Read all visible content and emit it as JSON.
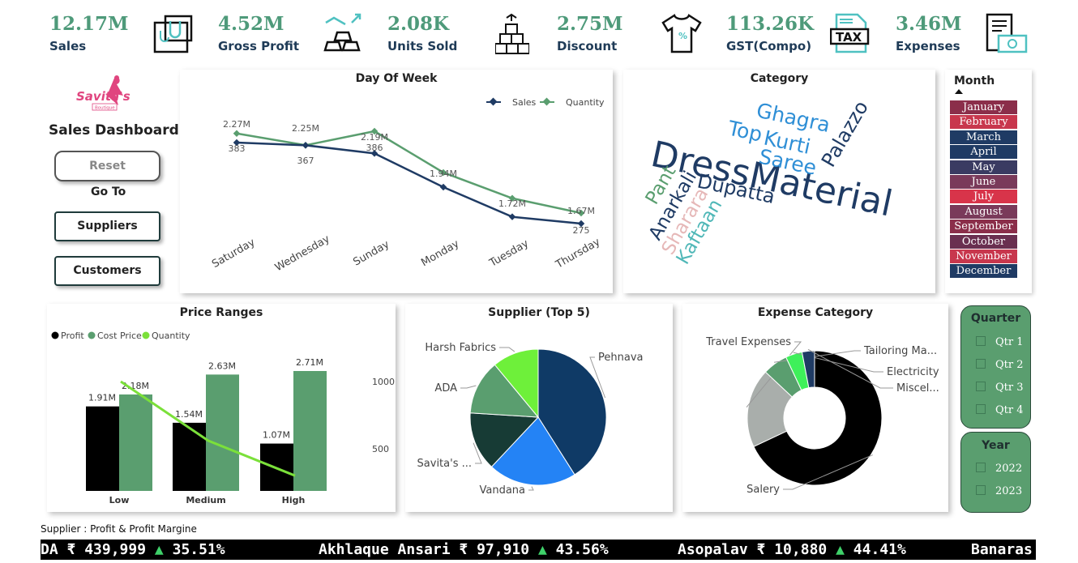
{
  "kpis": [
    {
      "value": "12.17M",
      "label": "Sales",
      "icon": "shopping-bag-icon"
    },
    {
      "value": "4.52M",
      "label": "Gross Profit",
      "icon": "gold-bars-icon"
    },
    {
      "value": "2.08K",
      "label": "Units Sold",
      "icon": "boxes-icon"
    },
    {
      "value": "2.75M",
      "label": "Discount",
      "icon": "tshirt-discount-icon"
    },
    {
      "value": "113.26K",
      "label": "GST(Compo)",
      "icon": "tax-document-icon"
    },
    {
      "value": "3.46M",
      "label": "Expenses",
      "icon": "invoice-money-icon"
    }
  ],
  "sidebar": {
    "logo_text": "Savita's",
    "logo_sub": "Boutique",
    "title": "Sales Dashboard",
    "reset_label": "Reset",
    "goto_label": "Go To",
    "suppliers_label": "Suppliers",
    "customers_label": "Customers"
  },
  "colors": {
    "sales": "#1f3b64",
    "quantity": "#5a9e6f",
    "profit": "#000000",
    "cost_price": "#5a9e6f",
    "qty_line": "#7be03a",
    "accent": "#4e9a7a"
  },
  "day_of_week": {
    "title": "Day Of Week",
    "legend": [
      "Sales",
      "Quantity"
    ],
    "chart_data": {
      "type": "line",
      "categories": [
        "Saturday",
        "Wednesday",
        "Sunday",
        "Monday",
        "Tuesday",
        "Thursday"
      ],
      "series": [
        {
          "name": "Sales",
          "values": [
            2.27,
            2.25,
            2.19,
            1.94,
            1.72,
            1.67
          ],
          "labels": [
            "2.27M",
            "2.25M",
            "2.19M",
            "1.94M",
            "1.72M",
            "1.67M"
          ]
        },
        {
          "name": "Quantity",
          "values": [
            383,
            367,
            386,
            330,
            295,
            275
          ],
          "labels": [
            "383",
            "367",
            "386",
            "",
            "",
            "275"
          ]
        }
      ]
    }
  },
  "category": {
    "title": "Category",
    "words": [
      {
        "text": "DressMaterial",
        "color": "#1f3b64"
      },
      {
        "text": "Dupatta",
        "color": "#1f3b64"
      },
      {
        "text": "Ghagra",
        "color": "#2f8fd6"
      },
      {
        "text": "Top",
        "color": "#2f8fd6"
      },
      {
        "text": "Kurti",
        "color": "#2f8fd6"
      },
      {
        "text": "Saree",
        "color": "#2f8fd6"
      },
      {
        "text": "Palazzo",
        "color": "#1f3b64"
      },
      {
        "text": "Pant",
        "color": "#5a9e6f"
      },
      {
        "text": "Anarkali",
        "color": "#1f3b64"
      },
      {
        "text": "Sharara",
        "color": "#e6b8b8"
      },
      {
        "text": "Kaftaan",
        "color": "#4fb7b7"
      }
    ]
  },
  "month_slicer": {
    "title": "Month",
    "months": [
      {
        "name": "January",
        "color": "#8b2e4a"
      },
      {
        "name": "February",
        "color": "#c8374d"
      },
      {
        "name": "March",
        "color": "#1f3b64"
      },
      {
        "name": "April",
        "color": "#1f3b64"
      },
      {
        "name": "May",
        "color": "#3a3b62"
      },
      {
        "name": "June",
        "color": "#7a3a5a"
      },
      {
        "name": "July",
        "color": "#d8344a"
      },
      {
        "name": "August",
        "color": "#7a3a5a"
      },
      {
        "name": "September",
        "color": "#8b2e4a"
      },
      {
        "name": "October",
        "color": "#6a2f50"
      },
      {
        "name": "November",
        "color": "#c8374d"
      },
      {
        "name": "December",
        "color": "#1f3b64"
      }
    ]
  },
  "price_ranges": {
    "title": "Price Ranges",
    "legend": [
      "Profit",
      "Cost Price",
      "Quantity"
    ],
    "secondary_ticks": [
      "1000",
      "500"
    ],
    "chart_data": {
      "type": "bar",
      "categories": [
        "Low",
        "Medium",
        "High"
      ],
      "series": [
        {
          "name": "Profit",
          "values": [
            1.91,
            1.54,
            1.07
          ],
          "labels": [
            "1.91M",
            "1.54M",
            "1.07M"
          ]
        },
        {
          "name": "Cost Price",
          "values": [
            2.18,
            2.63,
            2.71
          ],
          "labels": [
            "2.18M",
            "2.63M",
            "2.71M"
          ]
        },
        {
          "name": "Quantity",
          "values": [
            1000,
            560,
            300
          ]
        }
      ]
    }
  },
  "supplier_top5": {
    "title": "Supplier (Top 5)",
    "chart_data": {
      "type": "pie",
      "slices": [
        {
          "label": "Pehnava",
          "value": 41,
          "color": "#0f3a66"
        },
        {
          "label": "Vandana",
          "value": 21,
          "color": "#2483f5"
        },
        {
          "label": "Savita's ...",
          "value": 14,
          "color": "#173b35"
        },
        {
          "label": "ADA",
          "value": 13,
          "color": "#5a9e6f"
        },
        {
          "label": "Harsh Fabrics",
          "value": 11,
          "color": "#6ef03a"
        }
      ]
    }
  },
  "expense_category": {
    "title": "Expense Category",
    "chart_data": {
      "type": "pie",
      "slices": [
        {
          "label": "Salery",
          "value": 68,
          "color": "#000000"
        },
        {
          "label": "Travel Expenses",
          "value": 19,
          "color": "#a9aeab"
        },
        {
          "label": "Tailoring Ma...",
          "value": 6,
          "color": "#5a9e6f"
        },
        {
          "label": "Electricity",
          "value": 4,
          "color": "#3ef05a"
        },
        {
          "label": "Miscel...",
          "value": 3,
          "color": "#1f3b64"
        }
      ]
    }
  },
  "quarter_slicer": {
    "title": "Quarter",
    "options": [
      "Qtr 1",
      "Qtr 2",
      "Qtr 3",
      "Qtr 4"
    ]
  },
  "year_slicer": {
    "title": "Year",
    "options": [
      "2022",
      "2023"
    ]
  },
  "ticker": {
    "caption": "Supplier : Profit & Profit Margine",
    "items": [
      {
        "name": "DA",
        "amount": "₹ 439,999",
        "arrow": "▲",
        "pct": "35.51%"
      },
      {
        "name": "Akhlaque Ansari",
        "amount": "₹ 97,910",
        "arrow": "▲",
        "pct": "43.56%"
      },
      {
        "name": "Asopalav",
        "amount": "₹ 10,880",
        "arrow": "▲",
        "pct": "44.41%"
      },
      {
        "name": "Banaras",
        "amount": "",
        "arrow": "",
        "pct": ""
      }
    ]
  }
}
